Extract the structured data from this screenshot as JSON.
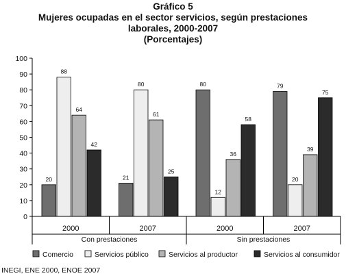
{
  "chart_data": {
    "type": "bar",
    "title_lines": [
      "Gráfico 5",
      "Mujeres ocupadas en el sector servicios, según prestaciones",
      "laborales, 2000-2007",
      "(Porcentajes)"
    ],
    "groups": [
      {
        "year": "2000",
        "group": "Con prestaciones"
      },
      {
        "year": "2007",
        "group": "Con prestaciones"
      },
      {
        "year": "2000",
        "group": "Sin prestaciones"
      },
      {
        "year": "2007",
        "group": "Sin prestaciones"
      }
    ],
    "group_labels": [
      "Con prestaciones",
      "Sin prestaciones"
    ],
    "series": [
      {
        "name": "Comercio",
        "color": "#6e6e6e",
        "values": [
          20,
          21,
          80,
          79
        ]
      },
      {
        "name": "Servicios público",
        "color": "#eeeeee",
        "values": [
          88,
          80,
          12,
          20
        ]
      },
      {
        "name": "Servicios al productor",
        "color": "#b4b4b4",
        "values": [
          64,
          61,
          36,
          39
        ]
      },
      {
        "name": "Servicios al consumidor",
        "color": "#2b2b2b",
        "values": [
          42,
          25,
          58,
          75
        ]
      }
    ],
    "data_labels": [
      [
        "20",
        "21",
        "80",
        "79"
      ],
      [
        "88",
        "80",
        "12",
        "20"
      ],
      [
        "64",
        "61",
        "36",
        "39"
      ],
      [
        "42",
        "25",
        "58",
        "75"
      ]
    ],
    "ylim": [
      0,
      100
    ],
    "yticks": [
      0,
      10,
      20,
      30,
      40,
      50,
      60,
      70,
      80,
      90,
      100
    ],
    "grid": false,
    "legend_position": "bottom"
  },
  "source": "INEGI, ENE 2000, ENOE 2007"
}
